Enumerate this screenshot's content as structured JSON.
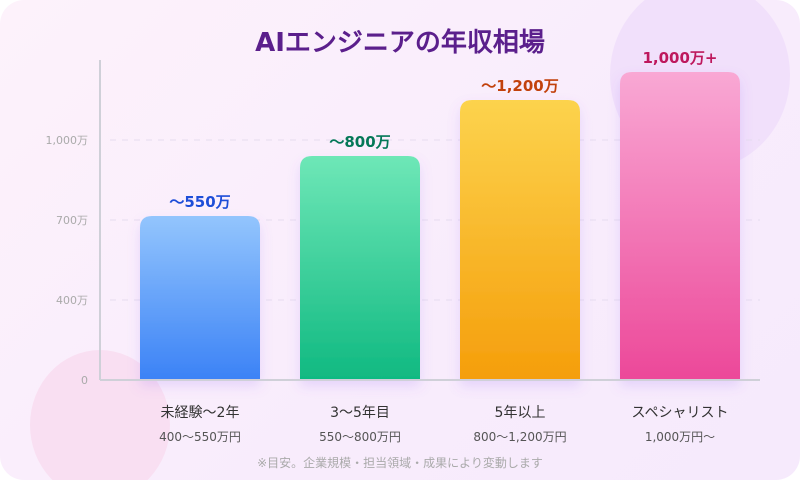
{
  "chart_data": {
    "type": "bar",
    "title": "AIエンジニアの年収相場",
    "y_ticks": [
      "0",
      "400万",
      "700万",
      "1,000万"
    ],
    "grid": true,
    "categories": [
      {
        "name": "未経験〜2年",
        "range": "400〜550万円",
        "label": "〜550万",
        "value": 550,
        "colors": [
          "#93c5fd",
          "#3b82f6"
        ],
        "label_color": "#1d4ed8"
      },
      {
        "name": "3〜5年目",
        "range": "550〜800万円",
        "label": "〜800万",
        "value": 800,
        "colors": [
          "#6ee7b7",
          "#10b981"
        ],
        "label_color": "#047857"
      },
      {
        "name": "5年以上",
        "range": "800〜1,200万円",
        "label": "〜1,200万",
        "value": 1200,
        "colors": [
          "#fcd34d",
          "#f59e0b"
        ],
        "label_color": "#c2410c"
      },
      {
        "name": "スペシャリスト",
        "range": "1,000万円〜",
        "label": "1,000万+",
        "value": 1000,
        "colors": [
          "#f9a8d4",
          "#ec4899"
        ],
        "label_color": "#be185d"
      }
    ],
    "note": "※目安。企業規模・担当領域・成果により変動します"
  }
}
